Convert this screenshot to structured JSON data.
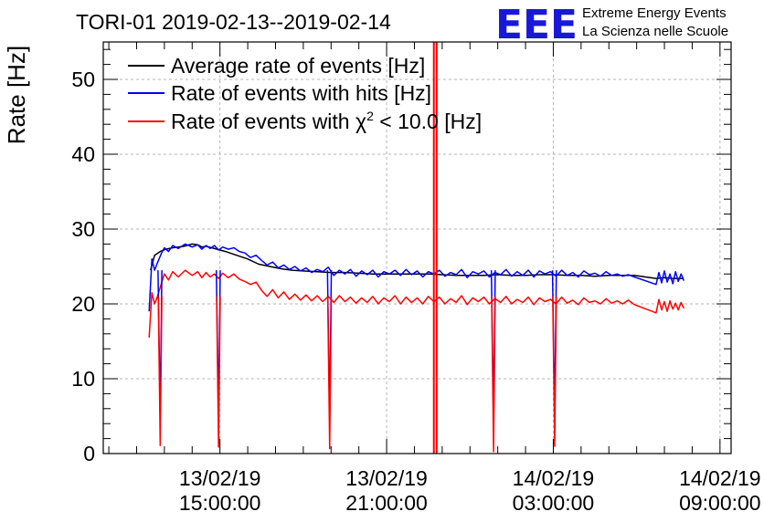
{
  "chart_data": {
    "type": "line",
    "title": "TORI-01 2019-02-13--2019-02-14",
    "xlabel": "",
    "ylabel": "Rate [Hz]",
    "ylim": [
      0,
      55
    ],
    "yticks": [
      0,
      10,
      20,
      30,
      40,
      50
    ],
    "x_unit": "hours since 13/02/19 09:00:00",
    "xlim": [
      10.8,
      33.4
    ],
    "xticks": [
      {
        "x": 15,
        "date": "13/02/19",
        "time": "15:00:00"
      },
      {
        "x": 21,
        "date": "13/02/19",
        "time": "21:00:00"
      },
      {
        "x": 27,
        "date": "14/02/19",
        "time": "03:00:00"
      },
      {
        "x": 33,
        "date": "14/02/19",
        "time": "09:00:00"
      }
    ],
    "grid": true,
    "legend_position": "top-left",
    "series": [
      {
        "name": "Average rate of events [Hz]",
        "legend_label": "Average rate of events [Hz]",
        "color": "#000000",
        "x": [
          12.5,
          12.65,
          12.85,
          13.05,
          13.3,
          13.7,
          14.0,
          14.2,
          14.35,
          14.5,
          14.7,
          14.9,
          15.2,
          15.6,
          16.0,
          16.4,
          16.8,
          17.2,
          17.6,
          18.0,
          18.5,
          19.0,
          19.5,
          20.0,
          20.5,
          21.0,
          21.5,
          22.0,
          22.5,
          23.0,
          23.5,
          24.0,
          24.5,
          25.0,
          25.5,
          26.0,
          26.5,
          27.0,
          27.5,
          28.0,
          28.5,
          29.0,
          29.5,
          29.92,
          30.7,
          31.0,
          31.3,
          31.7
        ],
        "y": [
          24.5,
          26.5,
          27.0,
          27.3,
          27.5,
          27.7,
          28.0,
          27.9,
          27.6,
          27.7,
          27.5,
          27.3,
          27.0,
          26.5,
          26.0,
          25.3,
          25.0,
          24.7,
          24.5,
          24.4,
          24.3,
          24.2,
          24.2,
          24.1,
          24.0,
          24.0,
          24.0,
          24.0,
          24.0,
          23.9,
          23.8,
          23.8,
          23.8,
          23.9,
          23.8,
          23.8,
          23.9,
          23.9,
          23.8,
          23.8,
          23.7,
          23.8,
          23.8,
          23.8,
          23.4,
          23.5,
          23.4,
          23.4
        ]
      },
      {
        "name": "Rate of events with hits [Hz]",
        "legend_label": "Rate of events with hits [Hz]",
        "color": "#0000ff",
        "x": [
          12.45,
          12.55,
          12.65,
          12.75,
          12.9,
          13.0,
          13.15,
          13.3,
          13.5,
          13.75,
          14.0,
          14.2,
          14.35,
          14.5,
          14.65,
          14.8,
          14.95,
          15.1,
          15.3,
          15.5,
          15.7,
          15.9,
          16.1,
          16.3,
          16.5,
          16.7,
          16.9,
          17.1,
          17.3,
          17.5,
          17.7,
          17.9,
          18.1,
          18.3,
          18.5,
          18.7,
          18.9,
          19.1,
          19.3,
          19.5,
          19.7,
          19.9,
          20.1,
          20.3,
          20.5,
          20.7,
          20.9,
          21.1,
          21.3,
          21.5,
          21.7,
          21.9,
          22.1,
          22.3,
          22.5,
          22.7,
          22.9,
          23.1,
          23.3,
          23.5,
          23.7,
          23.9,
          24.1,
          24.3,
          24.5,
          24.7,
          24.9,
          25.1,
          25.3,
          25.5,
          25.7,
          25.9,
          26.1,
          26.3,
          26.5,
          26.7,
          26.9,
          27.1,
          27.3,
          27.5,
          27.7,
          27.9,
          28.1,
          28.3,
          28.5,
          28.7,
          28.9,
          29.1,
          29.3,
          29.5,
          29.7,
          29.92,
          30.7,
          30.8,
          30.9,
          31.0,
          31.1,
          31.2,
          31.3,
          31.4,
          31.5,
          31.6,
          31.7
        ],
        "y": [
          19.0,
          26.0,
          24.5,
          25.5,
          26.8,
          27.5,
          27.0,
          27.8,
          27.4,
          28.0,
          27.6,
          27.9,
          27.3,
          27.8,
          27.4,
          27.8,
          27.2,
          27.6,
          27.3,
          27.5,
          27.0,
          26.8,
          26.2,
          26.5,
          25.8,
          25.2,
          25.6,
          24.8,
          25.2,
          24.6,
          25.0,
          24.4,
          24.8,
          24.2,
          24.6,
          24.3,
          24.9,
          23.8,
          24.5,
          24.0,
          24.6,
          23.7,
          24.4,
          23.9,
          24.5,
          23.6,
          24.3,
          24.0,
          24.5,
          23.8,
          24.6,
          23.9,
          24.4,
          23.6,
          24.3,
          24.0,
          24.5,
          23.7,
          24.2,
          23.9,
          24.6,
          23.5,
          24.3,
          24.0,
          24.4,
          23.6,
          24.2,
          23.9,
          24.6,
          23.7,
          24.3,
          23.8,
          24.5,
          23.6,
          24.4,
          24.0,
          24.3,
          23.7,
          24.5,
          23.8,
          24.2,
          23.6,
          24.4,
          23.9,
          24.1,
          23.7,
          24.3,
          23.8,
          24.0,
          23.7,
          23.9,
          23.6,
          22.6,
          24.2,
          22.8,
          24.4,
          22.9,
          24.0,
          22.7,
          24.3,
          23.0,
          24.0,
          23.1
        ]
      },
      {
        "name": "Rate of events with chi2 < 10.0 [Hz]",
        "legend_label": "Rate of events with",
        "legend_symbol": "χ",
        "legend_superscript": "2",
        "legend_suffix": " < 10.0 [Hz]",
        "color": "#ff0000",
        "x": [
          12.45,
          12.55,
          12.65,
          12.75,
          12.9,
          13.0,
          13.15,
          13.3,
          13.5,
          13.75,
          14.0,
          14.2,
          14.35,
          14.5,
          14.65,
          14.8,
          14.95,
          15.1,
          15.3,
          15.5,
          15.7,
          15.9,
          16.1,
          16.3,
          16.5,
          16.7,
          16.9,
          17.1,
          17.3,
          17.5,
          17.7,
          17.9,
          18.1,
          18.3,
          18.5,
          18.7,
          18.9,
          19.1,
          19.3,
          19.5,
          19.7,
          19.9,
          20.1,
          20.3,
          20.5,
          20.7,
          20.9,
          21.1,
          21.3,
          21.5,
          21.7,
          21.9,
          22.1,
          22.3,
          22.5,
          22.7,
          22.9,
          23.1,
          23.3,
          23.5,
          23.7,
          23.9,
          24.1,
          24.3,
          24.5,
          24.7,
          24.9,
          25.1,
          25.3,
          25.5,
          25.7,
          25.9,
          26.1,
          26.3,
          26.5,
          26.7,
          26.9,
          27.1,
          27.3,
          27.5,
          27.7,
          27.9,
          28.1,
          28.3,
          28.5,
          28.7,
          28.9,
          29.1,
          29.3,
          29.5,
          29.7,
          29.92,
          30.7,
          30.8,
          30.9,
          31.0,
          31.1,
          31.2,
          31.3,
          31.4,
          31.5,
          31.6,
          31.7
        ],
        "y": [
          15.5,
          21.5,
          20.0,
          21.0,
          22.8,
          24.0,
          23.2,
          24.3,
          23.6,
          24.5,
          23.8,
          24.3,
          23.5,
          24.2,
          23.6,
          24.0,
          23.4,
          24.1,
          23.5,
          24.0,
          23.3,
          23.0,
          22.6,
          22.9,
          21.8,
          21.0,
          21.9,
          20.8,
          21.6,
          20.6,
          21.3,
          20.5,
          21.2,
          20.4,
          21.1,
          20.3,
          21.0,
          20.2,
          21.1,
          20.3,
          20.9,
          20.1,
          20.8,
          20.2,
          21.0,
          20.0,
          20.8,
          20.3,
          21.1,
          20.0,
          20.9,
          20.2,
          20.8,
          20.0,
          21.0,
          20.3,
          20.9,
          20.0,
          20.7,
          20.2,
          21.1,
          19.9,
          20.8,
          20.3,
          20.9,
          20.0,
          20.7,
          20.2,
          21.0,
          20.0,
          20.6,
          20.2,
          20.9,
          19.9,
          20.8,
          20.3,
          20.6,
          20.0,
          20.9,
          20.1,
          20.5,
          19.9,
          20.8,
          20.2,
          20.4,
          20.0,
          20.7,
          20.1,
          20.4,
          20.0,
          20.5,
          19.9,
          18.8,
          20.6,
          19.2,
          20.3,
          19.0,
          20.4,
          19.3,
          20.1,
          19.2,
          20.2,
          19.4
        ]
      }
    ],
    "dips": [
      {
        "x": 12.85,
        "min": 1.0
      },
      {
        "x": 14.95,
        "min": 0.8
      },
      {
        "x": 18.95,
        "min": 0.6
      },
      {
        "x": 24.85,
        "min": 0.2
      },
      {
        "x": 27.05,
        "min": 0.9
      }
    ],
    "spike": {
      "x": 22.75,
      "width": 0.1,
      "min": 0.0,
      "max": 55
    }
  },
  "logo": {
    "text": "EEE",
    "line1": "Extreme Energy Events",
    "line2": "La Scienza nelle Scuole"
  },
  "colors": {
    "logo": "#1818d8",
    "grid": "#b4b4b4"
  }
}
